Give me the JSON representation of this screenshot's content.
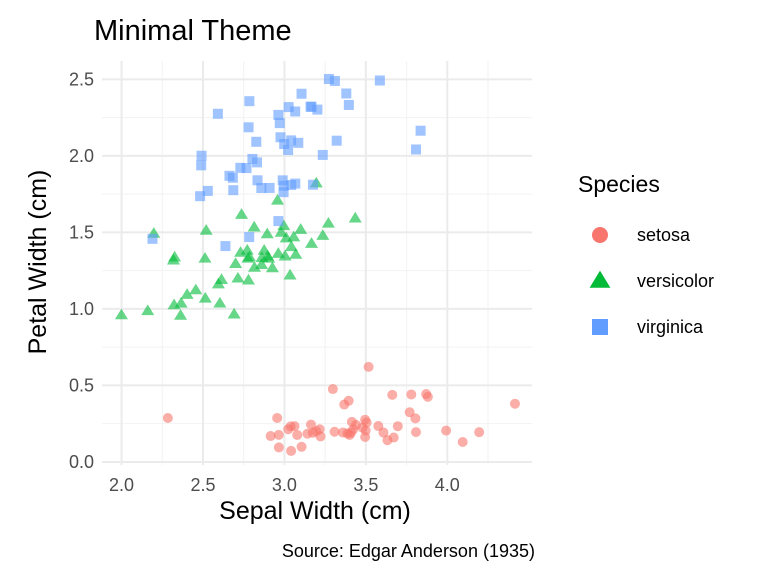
{
  "chart_data": {
    "type": "scatter",
    "title": "Minimal Theme",
    "xlabel": "Sepal Width (cm)",
    "ylabel": "Petal Width (cm)",
    "caption": "Source: Edgar Anderson (1935)",
    "xlim": [
      1.88,
      4.52
    ],
    "ylim": [
      -0.02,
      2.62
    ],
    "x_ticks": [
      2.0,
      2.5,
      3.0,
      3.5,
      4.0
    ],
    "x_tick_labels": [
      "2.0",
      "2.5",
      "3.0",
      "3.5",
      "4.0"
    ],
    "y_ticks": [
      0.0,
      0.5,
      1.0,
      1.5,
      2.0,
      2.5
    ],
    "y_tick_labels": [
      "0.0",
      "0.5",
      "1.0",
      "1.5",
      "2.0",
      "2.5"
    ],
    "grid": true,
    "legend": {
      "title": "Species",
      "position": "right"
    },
    "series": [
      {
        "name": "setosa",
        "color": "#F8766D",
        "shape": "circle",
        "points": [
          [
            3.5,
            0.2
          ],
          [
            3.0,
            0.2
          ],
          [
            3.2,
            0.2
          ],
          [
            3.1,
            0.2
          ],
          [
            3.6,
            0.2
          ],
          [
            3.9,
            0.4
          ],
          [
            3.4,
            0.3
          ],
          [
            3.4,
            0.2
          ],
          [
            2.9,
            0.2
          ],
          [
            3.1,
            0.1
          ],
          [
            3.7,
            0.2
          ],
          [
            3.4,
            0.2
          ],
          [
            3.0,
            0.1
          ],
          [
            3.0,
            0.1
          ],
          [
            4.0,
            0.2
          ],
          [
            4.4,
            0.4
          ],
          [
            3.9,
            0.4
          ],
          [
            3.5,
            0.3
          ],
          [
            3.8,
            0.3
          ],
          [
            3.8,
            0.3
          ],
          [
            3.4,
            0.2
          ],
          [
            3.7,
            0.4
          ],
          [
            3.6,
            0.2
          ],
          [
            3.3,
            0.5
          ],
          [
            3.4,
            0.2
          ],
          [
            3.0,
            0.2
          ],
          [
            3.4,
            0.4
          ],
          [
            3.5,
            0.2
          ],
          [
            3.4,
            0.2
          ],
          [
            3.2,
            0.2
          ],
          [
            3.1,
            0.2
          ],
          [
            3.4,
            0.4
          ],
          [
            4.1,
            0.1
          ],
          [
            4.2,
            0.2
          ],
          [
            3.1,
            0.2
          ],
          [
            3.2,
            0.2
          ],
          [
            3.5,
            0.2
          ],
          [
            3.6,
            0.1
          ],
          [
            3.0,
            0.2
          ],
          [
            3.4,
            0.2
          ],
          [
            3.5,
            0.3
          ],
          [
            2.3,
            0.3
          ],
          [
            3.2,
            0.2
          ],
          [
            3.5,
            0.6
          ],
          [
            3.8,
            0.4
          ],
          [
            3.0,
            0.3
          ],
          [
            3.8,
            0.2
          ],
          [
            3.2,
            0.2
          ],
          [
            3.7,
            0.2
          ],
          [
            3.3,
            0.2
          ]
        ]
      },
      {
        "name": "versicolor",
        "color": "#00BA38",
        "shape": "triangle",
        "points": [
          [
            3.2,
            1.4
          ],
          [
            3.2,
            1.5
          ],
          [
            3.1,
            1.5
          ],
          [
            2.3,
            1.3
          ],
          [
            2.8,
            1.5
          ],
          [
            2.8,
            1.3
          ],
          [
            3.3,
            1.6
          ],
          [
            2.4,
            1.0
          ],
          [
            2.9,
            1.3
          ],
          [
            2.7,
            1.4
          ],
          [
            2.0,
            1.0
          ],
          [
            3.0,
            1.5
          ],
          [
            2.2,
            1.0
          ],
          [
            2.9,
            1.4
          ],
          [
            2.9,
            1.3
          ],
          [
            3.1,
            1.4
          ],
          [
            3.0,
            1.5
          ],
          [
            2.7,
            1.0
          ],
          [
            2.2,
            1.5
          ],
          [
            2.5,
            1.1
          ],
          [
            3.2,
            1.8
          ],
          [
            2.8,
            1.3
          ],
          [
            2.5,
            1.5
          ],
          [
            2.8,
            1.2
          ],
          [
            2.9,
            1.3
          ],
          [
            3.0,
            1.4
          ],
          [
            2.8,
            1.4
          ],
          [
            3.0,
            1.7
          ],
          [
            2.9,
            1.5
          ],
          [
            2.6,
            1.0
          ],
          [
            2.4,
            1.1
          ],
          [
            2.4,
            1.0
          ],
          [
            2.7,
            1.2
          ],
          [
            2.7,
            1.6
          ],
          [
            3.0,
            1.5
          ],
          [
            3.4,
            1.6
          ],
          [
            3.1,
            1.5
          ],
          [
            2.3,
            1.3
          ],
          [
            3.0,
            1.3
          ],
          [
            2.5,
            1.3
          ],
          [
            2.6,
            1.2
          ],
          [
            3.0,
            1.4
          ],
          [
            2.6,
            1.2
          ],
          [
            2.3,
            1.0
          ],
          [
            2.7,
            1.3
          ],
          [
            3.0,
            1.2
          ],
          [
            2.9,
            1.3
          ],
          [
            2.9,
            1.3
          ],
          [
            2.5,
            1.1
          ],
          [
            2.8,
            1.3
          ]
        ]
      },
      {
        "name": "virginica",
        "color": "#619CFF",
        "shape": "square",
        "points": [
          [
            3.3,
            2.5
          ],
          [
            2.7,
            1.9
          ],
          [
            3.0,
            2.1
          ],
          [
            2.9,
            1.8
          ],
          [
            3.0,
            2.2
          ],
          [
            3.0,
            2.1
          ],
          [
            2.5,
            1.7
          ],
          [
            2.9,
            1.8
          ],
          [
            2.5,
            1.8
          ],
          [
            3.6,
            2.5
          ],
          [
            3.2,
            2.0
          ],
          [
            2.7,
            1.9
          ],
          [
            3.0,
            2.1
          ],
          [
            2.5,
            2.0
          ],
          [
            2.8,
            2.4
          ],
          [
            3.2,
            2.3
          ],
          [
            3.0,
            1.8
          ],
          [
            3.8,
            2.2
          ],
          [
            2.6,
            2.3
          ],
          [
            2.2,
            1.5
          ],
          [
            3.2,
            2.3
          ],
          [
            2.8,
            2.0
          ],
          [
            2.8,
            2.0
          ],
          [
            2.7,
            1.8
          ],
          [
            3.3,
            2.1
          ],
          [
            3.2,
            1.8
          ],
          [
            2.8,
            1.8
          ],
          [
            3.0,
            1.8
          ],
          [
            2.8,
            2.1
          ],
          [
            3.0,
            1.6
          ],
          [
            2.8,
            1.9
          ],
          [
            3.8,
            2.0
          ],
          [
            2.8,
            2.2
          ],
          [
            2.8,
            1.5
          ],
          [
            2.6,
            1.4
          ],
          [
            3.0,
            2.3
          ],
          [
            3.4,
            2.4
          ],
          [
            3.1,
            1.8
          ],
          [
            3.0,
            1.8
          ],
          [
            3.1,
            2.1
          ],
          [
            3.1,
            2.4
          ],
          [
            3.1,
            2.3
          ],
          [
            2.7,
            1.9
          ],
          [
            3.2,
            2.3
          ],
          [
            3.3,
            2.5
          ],
          [
            3.0,
            2.3
          ],
          [
            2.5,
            1.9
          ],
          [
            3.0,
            2.0
          ],
          [
            3.4,
            2.3
          ],
          [
            3.0,
            1.8
          ]
        ]
      }
    ]
  }
}
